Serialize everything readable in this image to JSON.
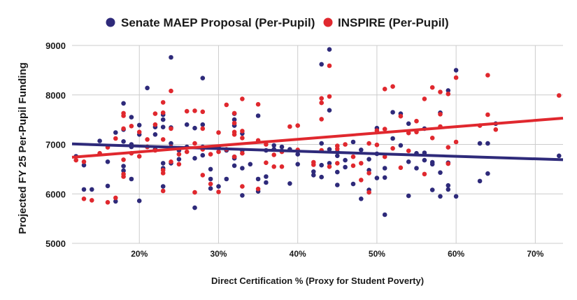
{
  "chart_data": {
    "type": "scatter",
    "title": "",
    "xlabel": "Direct Certification % (Proxy for Student Poverty)",
    "ylabel": "Projected FY 25 Per-Pupil Funding",
    "xlim": [
      11.5,
      73.5
    ],
    "ylim": [
      5000,
      9000
    ],
    "x_ticks": [
      20,
      30,
      40,
      50,
      60,
      70
    ],
    "x_tick_labels": [
      "20%",
      "30%",
      "40%",
      "50%",
      "60%",
      "70%"
    ],
    "y_ticks": [
      5000,
      6000,
      7000,
      8000,
      9000
    ],
    "y_tick_labels": [
      "5000",
      "6000",
      "7000",
      "8000",
      "9000"
    ],
    "grid": true,
    "legend_position": "top",
    "series": [
      {
        "name": "Senate MAEP Proposal (Per-Pupil)",
        "color": "#2e2a7a",
        "trendline": [
          [
            11.5,
            7010
          ],
          [
            73.5,
            6690
          ]
        ],
        "points": [
          [
            12,
            6760
          ],
          [
            13,
            6580
          ],
          [
            13,
            6090
          ],
          [
            14,
            6090
          ],
          [
            15,
            7070
          ],
          [
            16,
            6650
          ],
          [
            16,
            6160
          ],
          [
            17,
            7240
          ],
          [
            17,
            5850
          ],
          [
            18,
            7830
          ],
          [
            18,
            7300
          ],
          [
            18,
            7060
          ],
          [
            18,
            6560
          ],
          [
            18,
            6470
          ],
          [
            19,
            7550
          ],
          [
            19,
            7000
          ],
          [
            19,
            6950
          ],
          [
            19,
            6300
          ],
          [
            20,
            7390
          ],
          [
            20,
            7200
          ],
          [
            20,
            5860
          ],
          [
            21,
            8140
          ],
          [
            21,
            6950
          ],
          [
            22,
            7350
          ],
          [
            22,
            7200
          ],
          [
            22,
            6900
          ],
          [
            23,
            7600
          ],
          [
            23,
            7500
          ],
          [
            23,
            7350
          ],
          [
            23,
            6620
          ],
          [
            23,
            6520
          ],
          [
            23,
            6150
          ],
          [
            24,
            8760
          ],
          [
            24,
            7340
          ],
          [
            24,
            7020
          ],
          [
            24,
            6620
          ],
          [
            25,
            6880
          ],
          [
            25,
            6700
          ],
          [
            26,
            7400
          ],
          [
            26,
            6950
          ],
          [
            27,
            7330
          ],
          [
            27,
            6720
          ],
          [
            27,
            5720
          ],
          [
            28,
            8340
          ],
          [
            28,
            7400
          ],
          [
            28,
            6950
          ],
          [
            28,
            6780
          ],
          [
            29,
            6500
          ],
          [
            29,
            6110
          ],
          [
            29,
            6300
          ],
          [
            30,
            6950
          ],
          [
            30,
            6150
          ],
          [
            31,
            6880
          ],
          [
            31,
            6300
          ],
          [
            32,
            7620
          ],
          [
            32,
            7500
          ],
          [
            32,
            7380
          ],
          [
            32,
            6750
          ],
          [
            32,
            6570
          ],
          [
            32,
            6720
          ],
          [
            33,
            7220
          ],
          [
            33,
            6880
          ],
          [
            33,
            6520
          ],
          [
            33,
            5970
          ],
          [
            34,
            6600
          ],
          [
            35,
            7580
          ],
          [
            35,
            6300
          ],
          [
            35,
            6050
          ],
          [
            36,
            6880
          ],
          [
            36,
            6350
          ],
          [
            36,
            6230
          ],
          [
            37,
            6980
          ],
          [
            37,
            6900
          ],
          [
            38,
            6950
          ],
          [
            38,
            6870
          ],
          [
            39,
            6900
          ],
          [
            39,
            6210
          ],
          [
            40,
            6800
          ],
          [
            40,
            6600
          ],
          [
            42,
            6450
          ],
          [
            42,
            6380
          ],
          [
            43,
            8620
          ],
          [
            43,
            7020
          ],
          [
            43,
            6580
          ],
          [
            43,
            6340
          ],
          [
            44,
            8920
          ],
          [
            44,
            7690
          ],
          [
            44,
            6900
          ],
          [
            44,
            6620
          ],
          [
            45,
            6850
          ],
          [
            45,
            6770
          ],
          [
            45,
            6440
          ],
          [
            45,
            6180
          ],
          [
            46,
            6680
          ],
          [
            46,
            6540
          ],
          [
            47,
            7050
          ],
          [
            47,
            6200
          ],
          [
            48,
            6890
          ],
          [
            48,
            5900
          ],
          [
            49,
            6700
          ],
          [
            49,
            6480
          ],
          [
            49,
            6080
          ],
          [
            50,
            7330
          ],
          [
            50,
            6810
          ],
          [
            50,
            6320
          ],
          [
            51,
            6520
          ],
          [
            51,
            6330
          ],
          [
            51,
            5580
          ],
          [
            52,
            7650
          ],
          [
            52,
            7120
          ],
          [
            53,
            7620
          ],
          [
            53,
            6980
          ],
          [
            54,
            7420
          ],
          [
            54,
            6650
          ],
          [
            54,
            5960
          ],
          [
            55,
            6820
          ],
          [
            55,
            6520
          ],
          [
            56,
            7320
          ],
          [
            56,
            6830
          ],
          [
            56,
            6680
          ],
          [
            57,
            6640
          ],
          [
            57,
            6600
          ],
          [
            57,
            6080
          ],
          [
            58,
            7640
          ],
          [
            58,
            6430
          ],
          [
            58,
            5950
          ],
          [
            59,
            8090
          ],
          [
            59,
            6630
          ],
          [
            59,
            6170
          ],
          [
            59,
            6090
          ],
          [
            60,
            8500
          ],
          [
            60,
            5950
          ],
          [
            63,
            6260
          ],
          [
            63,
            7020
          ],
          [
            64,
            7020
          ],
          [
            64,
            6410
          ],
          [
            65,
            7420
          ],
          [
            73,
            6770
          ]
        ]
      },
      {
        "name": "INSPIRE (Per-Pupil)",
        "color": "#e0282e",
        "trendline": [
          [
            11.5,
            6740
          ],
          [
            73.5,
            7530
          ]
        ],
        "points": [
          [
            12,
            6680
          ],
          [
            13,
            6650
          ],
          [
            13,
            5900
          ],
          [
            14,
            5870
          ],
          [
            15,
            6820
          ],
          [
            16,
            6940
          ],
          [
            16,
            5830
          ],
          [
            17,
            7120
          ],
          [
            17,
            5920
          ],
          [
            18,
            7630
          ],
          [
            18,
            7580
          ],
          [
            18,
            7320
          ],
          [
            18,
            6690
          ],
          [
            18,
            6400
          ],
          [
            18,
            6350
          ],
          [
            19,
            7370
          ],
          [
            19,
            6820
          ],
          [
            20,
            7250
          ],
          [
            20,
            6760
          ],
          [
            21,
            6950
          ],
          [
            21,
            7100
          ],
          [
            22,
            7620
          ],
          [
            22,
            7400
          ],
          [
            22,
            6880
          ],
          [
            23,
            7850
          ],
          [
            23,
            7640
          ],
          [
            23,
            7100
          ],
          [
            23,
            6480
          ],
          [
            23,
            6420
          ],
          [
            23,
            6060
          ],
          [
            24,
            8080
          ],
          [
            24,
            7320
          ],
          [
            24,
            6950
          ],
          [
            24,
            6650
          ],
          [
            25,
            6800
          ],
          [
            25,
            6600
          ],
          [
            26,
            7670
          ],
          [
            26,
            6850
          ],
          [
            27,
            7680
          ],
          [
            27,
            7020
          ],
          [
            27,
            6030
          ],
          [
            28,
            7660
          ],
          [
            28,
            7320
          ],
          [
            28,
            6900
          ],
          [
            28,
            6380
          ],
          [
            29,
            6800
          ],
          [
            29,
            6200
          ],
          [
            30,
            7240
          ],
          [
            30,
            6850
          ],
          [
            30,
            6040
          ],
          [
            31,
            7800
          ],
          [
            31,
            6900
          ],
          [
            32,
            7630
          ],
          [
            32,
            7430
          ],
          [
            32,
            7200
          ],
          [
            32,
            7250
          ],
          [
            32,
            6750
          ],
          [
            33,
            7920
          ],
          [
            33,
            7270
          ],
          [
            33,
            7130
          ],
          [
            33,
            6820
          ],
          [
            33,
            6150
          ],
          [
            35,
            7810
          ],
          [
            35,
            7080
          ],
          [
            35,
            6100
          ],
          [
            36,
            7000
          ],
          [
            36,
            6630
          ],
          [
            37,
            6790
          ],
          [
            37,
            6550
          ],
          [
            38,
            6850
          ],
          [
            38,
            6550
          ],
          [
            39,
            7360
          ],
          [
            40,
            7380
          ],
          [
            40,
            6890
          ],
          [
            42,
            6640
          ],
          [
            42,
            6590
          ],
          [
            43,
            7930
          ],
          [
            43,
            7840
          ],
          [
            43,
            7510
          ],
          [
            43,
            6880
          ],
          [
            44,
            8590
          ],
          [
            44,
            7970
          ],
          [
            44,
            6550
          ],
          [
            45,
            6970
          ],
          [
            45,
            6910
          ],
          [
            45,
            6620
          ],
          [
            46,
            7000
          ],
          [
            47,
            6750
          ],
          [
            47,
            6570
          ],
          [
            48,
            6620
          ],
          [
            48,
            6280
          ],
          [
            49,
            7020
          ],
          [
            49,
            6420
          ],
          [
            49,
            6030
          ],
          [
            50,
            7280
          ],
          [
            50,
            6990
          ],
          [
            51,
            8120
          ],
          [
            51,
            7310
          ],
          [
            51,
            6750
          ],
          [
            52,
            8170
          ],
          [
            52,
            6920
          ],
          [
            53,
            7570
          ],
          [
            53,
            6530
          ],
          [
            54,
            7230
          ],
          [
            54,
            6870
          ],
          [
            55,
            7470
          ],
          [
            55,
            7250
          ],
          [
            56,
            7920
          ],
          [
            56,
            6400
          ],
          [
            57,
            8150
          ],
          [
            57,
            7130
          ],
          [
            58,
            8060
          ],
          [
            58,
            7610
          ],
          [
            58,
            7360
          ],
          [
            59,
            6940
          ],
          [
            59,
            6610
          ],
          [
            59,
            8020
          ],
          [
            60,
            8350
          ],
          [
            60,
            7050
          ],
          [
            63,
            7380
          ],
          [
            64,
            8400
          ],
          [
            64,
            7600
          ],
          [
            65,
            7300
          ],
          [
            73,
            7990
          ]
        ]
      }
    ]
  }
}
